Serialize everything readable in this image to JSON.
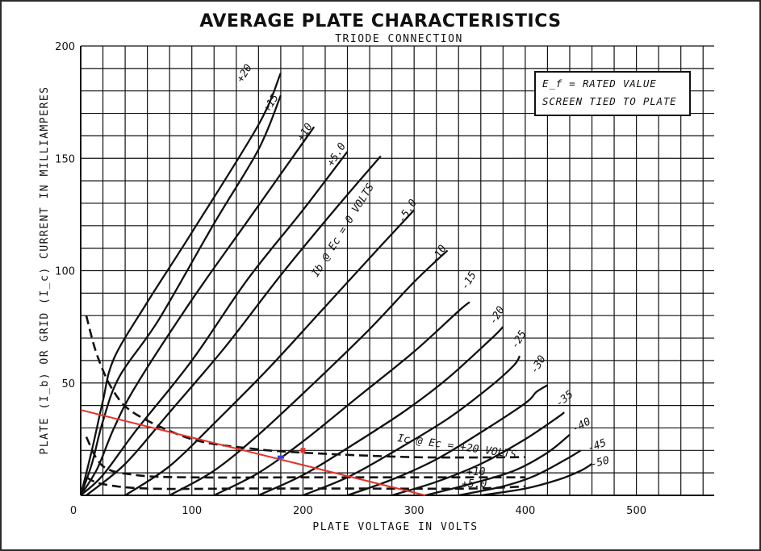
{
  "page": {
    "title": "AVERAGE PLATE CHARACTERISTICS",
    "subtitle": "TRIODE CONNECTION"
  },
  "notes": [
    "E_f = RATED VALUE",
    "SCREEN TIED TO PLATE"
  ],
  "colors": {
    "curves": "#111111",
    "grid": "#111111",
    "load_line": "#e8302a",
    "marker_blue": "#2b3fd6",
    "marker_red": "#e8302a"
  },
  "chart_data": {
    "type": "line",
    "title": "AVERAGE PLATE CHARACTERISTICS",
    "subtitle": "TRIODE CONNECTION",
    "xlabel": "PLATE VOLTAGE IN VOLTS",
    "ylabel": "PLATE (I_b) OR GRID (I_c) CURRENT IN MILLIAMPERES",
    "xlim": [
      0,
      570
    ],
    "ylim": [
      0,
      200
    ],
    "grid": true,
    "x_ticks": [
      0,
      100,
      200,
      300,
      400,
      500
    ],
    "y_ticks": [
      50,
      100,
      150,
      200
    ],
    "plate_curves": [
      {
        "name": "+20",
        "label": "+20",
        "points": [
          [
            0,
            0
          ],
          [
            10,
            20
          ],
          [
            20,
            42
          ],
          [
            30,
            61
          ],
          [
            60,
            86
          ],
          [
            100,
            117
          ],
          [
            160,
            165
          ],
          [
            180,
            188
          ]
        ]
      },
      {
        "name": "+15",
        "label": "+15",
        "points": [
          [
            0,
            0
          ],
          [
            10,
            14
          ],
          [
            20,
            33
          ],
          [
            35,
            53
          ],
          [
            70,
            78
          ],
          [
            120,
            121
          ],
          [
            160,
            154
          ],
          [
            180,
            178
          ]
        ]
      },
      {
        "name": "+10",
        "label": "+10",
        "points": [
          [
            0,
            0
          ],
          [
            15,
            12
          ],
          [
            30,
            30
          ],
          [
            50,
            49
          ],
          [
            100,
            87
          ],
          [
            150,
            122
          ],
          [
            200,
            157
          ],
          [
            210,
            164
          ]
        ]
      },
      {
        "name": "+5.0",
        "label": "+5.0",
        "points": [
          [
            0,
            0
          ],
          [
            20,
            9
          ],
          [
            50,
            29
          ],
          [
            100,
            60
          ],
          [
            150,
            96
          ],
          [
            200,
            127
          ],
          [
            240,
            153
          ]
        ]
      },
      {
        "name": "0",
        "label": "Ib @ Ec = 0 VOLTS",
        "points": [
          [
            5,
            0
          ],
          [
            40,
            14
          ],
          [
            80,
            37
          ],
          [
            130,
            66
          ],
          [
            180,
            98
          ],
          [
            230,
            128
          ],
          [
            270,
            151
          ]
        ]
      },
      {
        "name": "-5.0",
        "label": "-5.0",
        "points": [
          [
            40,
            0
          ],
          [
            80,
            13
          ],
          [
            120,
            32
          ],
          [
            170,
            57
          ],
          [
            220,
            84
          ],
          [
            270,
            111
          ],
          [
            300,
            127
          ]
        ]
      },
      {
        "name": "-10",
        "label": "-10",
        "points": [
          [
            80,
            0
          ],
          [
            120,
            11
          ],
          [
            160,
            27
          ],
          [
            210,
            50
          ],
          [
            260,
            74
          ],
          [
            300,
            95
          ],
          [
            330,
            109
          ]
        ]
      },
      {
        "name": "-15",
        "label": "-15",
        "points": [
          [
            120,
            0
          ],
          [
            160,
            10
          ],
          [
            200,
            24
          ],
          [
            250,
            44
          ],
          [
            300,
            64
          ],
          [
            340,
            82
          ],
          [
            350,
            86
          ]
        ]
      },
      {
        "name": "-20",
        "label": "-20",
        "points": [
          [
            160,
            0
          ],
          [
            200,
            9
          ],
          [
            240,
            21
          ],
          [
            290,
            37
          ],
          [
            330,
            52
          ],
          [
            370,
            70
          ],
          [
            380,
            75
          ]
        ]
      },
      {
        "name": "-25",
        "label": "-25",
        "points": [
          [
            200,
            0
          ],
          [
            240,
            8
          ],
          [
            280,
            19
          ],
          [
            330,
            34
          ],
          [
            370,
            49
          ],
          [
            390,
            58
          ],
          [
            395,
            62
          ]
        ]
      },
      {
        "name": "-30",
        "label": "-30",
        "points": [
          [
            240,
            0
          ],
          [
            280,
            7
          ],
          [
            320,
            16
          ],
          [
            360,
            28
          ],
          [
            400,
            41
          ],
          [
            410,
            46
          ],
          [
            420,
            49
          ]
        ]
      },
      {
        "name": "-35",
        "label": "-35",
        "points": [
          [
            280,
            0
          ],
          [
            320,
            6
          ],
          [
            360,
            14
          ],
          [
            400,
            25
          ],
          [
            430,
            35
          ],
          [
            435,
            37
          ]
        ]
      },
      {
        "name": "-40",
        "label": "-40",
        "points": [
          [
            310,
            0
          ],
          [
            350,
            5
          ],
          [
            390,
            11
          ],
          [
            420,
            19
          ],
          [
            440,
            27
          ]
        ]
      },
      {
        "name": "-45",
        "label": "-45",
        "points": [
          [
            340,
            0
          ],
          [
            380,
            4
          ],
          [
            410,
            9
          ],
          [
            440,
            17
          ],
          [
            450,
            20
          ]
        ]
      },
      {
        "name": "-50",
        "label": "-50",
        "points": [
          [
            360,
            0
          ],
          [
            400,
            3
          ],
          [
            430,
            7
          ],
          [
            450,
            11
          ],
          [
            460,
            14
          ]
        ]
      }
    ],
    "grid_curves": [
      {
        "name": "Ic +20",
        "label": "Ic @ Ec = +20 VOLTS",
        "points": [
          [
            5,
            80
          ],
          [
            15,
            62
          ],
          [
            30,
            46
          ],
          [
            50,
            36
          ],
          [
            100,
            25
          ],
          [
            150,
            21
          ],
          [
            200,
            19
          ],
          [
            300,
            17
          ],
          [
            400,
            17
          ]
        ]
      },
      {
        "name": "Ic +10",
        "label": "+10",
        "points": [
          [
            5,
            26
          ],
          [
            20,
            13
          ],
          [
            50,
            9
          ],
          [
            100,
            8
          ],
          [
            200,
            8
          ],
          [
            300,
            8
          ],
          [
            400,
            8
          ]
        ]
      },
      {
        "name": "Ic +5.0",
        "label": "+5.0",
        "points": [
          [
            5,
            8
          ],
          [
            20,
            5
          ],
          [
            60,
            3
          ],
          [
            150,
            3
          ],
          [
            250,
            3
          ],
          [
            350,
            3
          ],
          [
            400,
            4
          ]
        ]
      }
    ],
    "load_line": {
      "points": [
        [
          0,
          38
        ],
        [
          310,
          0
        ]
      ]
    },
    "markers": [
      {
        "name": "operating-point-blue",
        "x": 180,
        "y": 17
      },
      {
        "name": "operating-point-red",
        "x": 200,
        "y": 20
      }
    ]
  }
}
